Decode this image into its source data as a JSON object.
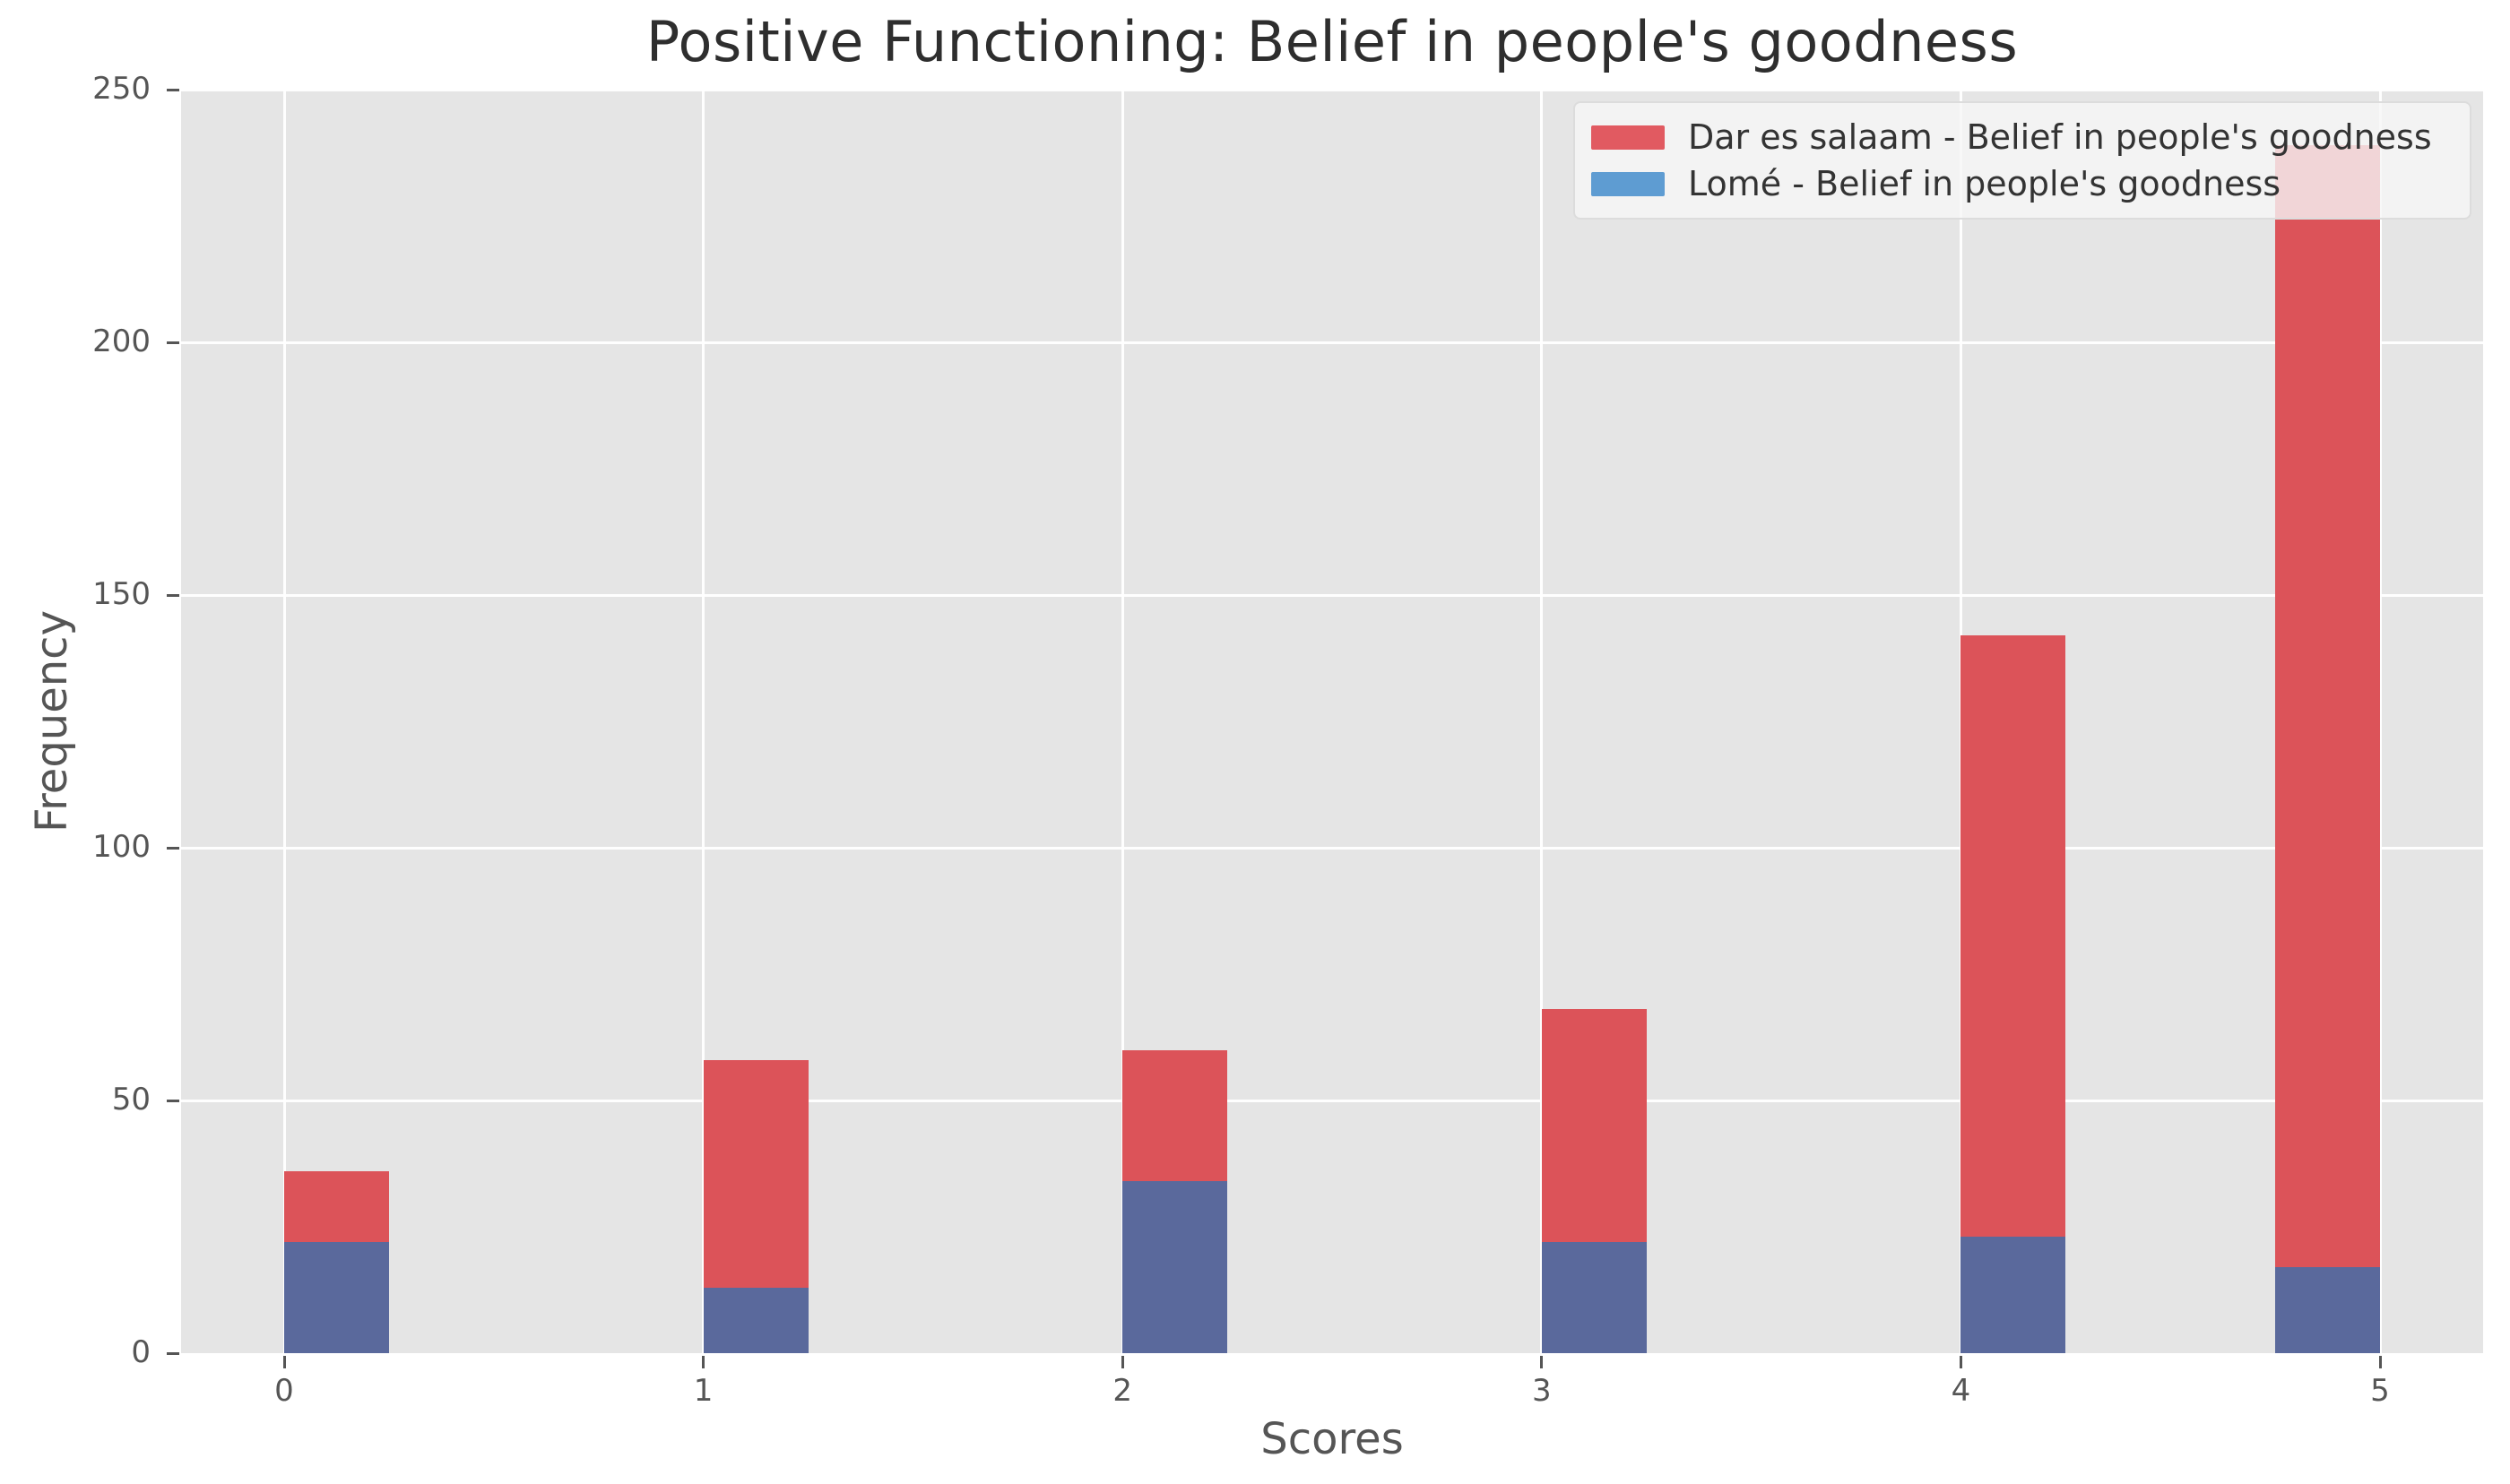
{
  "title": "Positive Functioning: Belief in people's goodness",
  "colors": {
    "figure_background": "#ffffff",
    "plot_background": "#e5e5e5",
    "grid": "#ffffff",
    "title_text": "#2e2e2e",
    "axis_text": "#555555",
    "legend_text": "#333333",
    "legend_border": "#dcdcdc"
  },
  "chart_data": {
    "type": "bar",
    "subtype": "overlaid-histogram",
    "title": "Positive Functioning: Belief in people's goodness",
    "xlabel": "Scores",
    "ylabel": "Frequency",
    "categories": [
      0,
      1,
      2,
      3,
      4,
      5
    ],
    "series": [
      {
        "name": "Dar es salaam - Belief in people's goodness",
        "values": [
          36,
          58,
          60,
          68,
          142,
          239
        ],
        "bar_color": "#dc5359",
        "legend_color": "#e15a61"
      },
      {
        "name": "Lomé - Belief in people's goodness",
        "values": [
          22,
          13,
          34,
          22,
          23,
          17
        ],
        "bar_color": "#5a699c",
        "legend_color": "#5e9cd2",
        "note": "drawn with alpha over red; overlap renders purple"
      }
    ],
    "ylim": [
      0,
      250
    ],
    "yticks": [
      0,
      50,
      100,
      150,
      200,
      250
    ],
    "xticks": [
      0,
      1,
      2,
      3,
      4,
      5
    ],
    "grid": true,
    "legend_position": "upper right",
    "bar_width_fraction": 0.25,
    "last_bar_ends_at_tick": true
  }
}
